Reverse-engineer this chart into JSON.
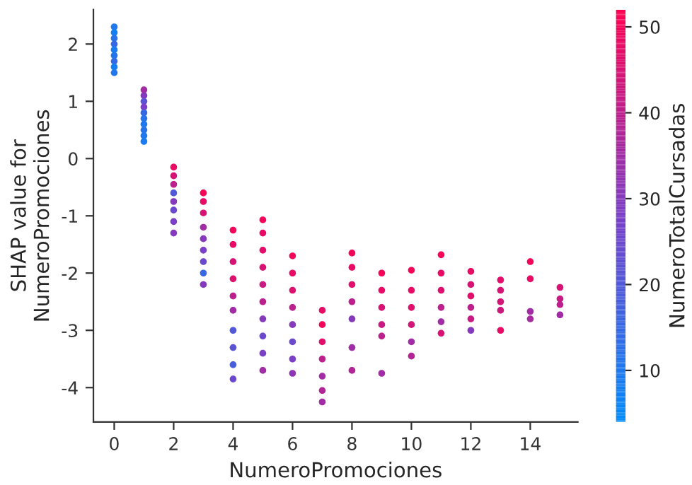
{
  "chart_data": {
    "type": "scatter",
    "xlabel": "NumeroPromociones",
    "ylabel": "SHAP value for\nNumeroPromociones",
    "clabel": "NumeroTotalCursadas",
    "x": [
      0,
      0,
      0,
      0,
      0,
      0,
      0,
      0,
      0,
      1,
      1,
      1,
      1,
      1,
      1,
      1,
      1,
      1,
      1,
      2,
      2,
      2,
      2,
      2,
      2,
      2,
      2,
      3,
      3,
      3,
      3,
      3,
      3,
      3,
      3,
      3,
      4,
      4,
      4,
      4,
      4,
      4,
      4,
      4,
      4,
      4,
      5,
      5,
      5,
      5,
      5,
      5,
      5,
      5,
      5,
      5,
      6,
      6,
      6,
      6,
      6,
      6,
      6,
      6,
      7,
      7,
      7,
      7,
      7,
      7,
      7,
      8,
      8,
      8,
      8,
      8,
      8,
      8,
      9,
      9,
      9,
      9,
      9,
      9,
      10,
      10,
      10,
      10,
      10,
      10,
      11,
      11,
      11,
      11,
      11,
      11,
      12,
      12,
      12,
      12,
      12,
      12,
      13,
      13,
      13,
      13,
      13,
      14,
      14,
      14,
      14,
      15,
      15,
      15,
      15
    ],
    "values": [
      2.3,
      2.2,
      2.1,
      2.0,
      1.9,
      1.8,
      1.7,
      1.6,
      1.5,
      1.2,
      1.1,
      1.0,
      0.9,
      0.8,
      0.7,
      0.6,
      0.5,
      0.4,
      0.3,
      -0.15,
      -0.3,
      -0.45,
      -0.6,
      -0.75,
      -0.9,
      -1.1,
      -1.3,
      -0.6,
      -0.75,
      -0.95,
      -1.2,
      -1.4,
      -1.6,
      -1.8,
      -2.0,
      -2.2,
      -1.25,
      -1.5,
      -1.8,
      -2.1,
      -2.4,
      -2.65,
      -3.0,
      -3.3,
      -3.6,
      -3.85,
      -1.07,
      -1.3,
      -1.6,
      -1.9,
      -2.2,
      -2.5,
      -2.8,
      -3.1,
      -3.4,
      -3.7,
      -1.7,
      -2.0,
      -2.3,
      -2.6,
      -2.9,
      -3.2,
      -3.5,
      -3.75,
      -2.65,
      -2.9,
      -3.2,
      -3.5,
      -3.8,
      -4.05,
      -4.25,
      -1.65,
      -1.9,
      -2.2,
      -2.5,
      -2.8,
      -3.3,
      -3.7,
      -2.0,
      -2.3,
      -2.6,
      -2.9,
      -3.1,
      -3.75,
      -1.95,
      -2.3,
      -2.6,
      -2.9,
      -3.2,
      -3.45,
      -1.68,
      -2.0,
      -2.3,
      -2.6,
      -2.85,
      -3.05,
      -1.97,
      -2.2,
      -2.4,
      -2.6,
      -2.8,
      -3.0,
      -2.12,
      -2.3,
      -2.5,
      -2.65,
      -3.0,
      -1.8,
      -2.1,
      -2.67,
      -2.8,
      -2.25,
      -2.45,
      -2.55,
      -2.73
    ],
    "cvalues": [
      10,
      8,
      12,
      15,
      9,
      11,
      14,
      8,
      10,
      35,
      30,
      22,
      28,
      15,
      12,
      10,
      12,
      10,
      9,
      48,
      45,
      40,
      20,
      30,
      25,
      28,
      30,
      50,
      48,
      45,
      35,
      30,
      28,
      25,
      15,
      30,
      50,
      48,
      45,
      46,
      40,
      35,
      20,
      22,
      18,
      25,
      50,
      48,
      47,
      45,
      42,
      40,
      30,
      25,
      28,
      35,
      50,
      48,
      46,
      40,
      30,
      25,
      28,
      32,
      48,
      50,
      47,
      40,
      35,
      38,
      35,
      50,
      48,
      46,
      40,
      30,
      35,
      38,
      50,
      48,
      45,
      42,
      40,
      35,
      50,
      48,
      46,
      44,
      35,
      38,
      50,
      48,
      46,
      40,
      35,
      45,
      48,
      45,
      47,
      40,
      42,
      30,
      47,
      45,
      44,
      43,
      48,
      50,
      48,
      35,
      36,
      45,
      42,
      40,
      35
    ],
    "xlim": [
      -0.7,
      15.6
    ],
    "xticks": [
      0,
      2,
      4,
      6,
      8,
      10,
      12,
      14
    ],
    "ylim": [
      -4.6,
      2.6
    ],
    "yticks": [
      -4,
      -3,
      -2,
      -1,
      0,
      1,
      2
    ],
    "clim": [
      4,
      52
    ],
    "cticks": [
      10,
      20,
      30,
      40,
      50
    ],
    "grid": false,
    "marker": "circle"
  }
}
